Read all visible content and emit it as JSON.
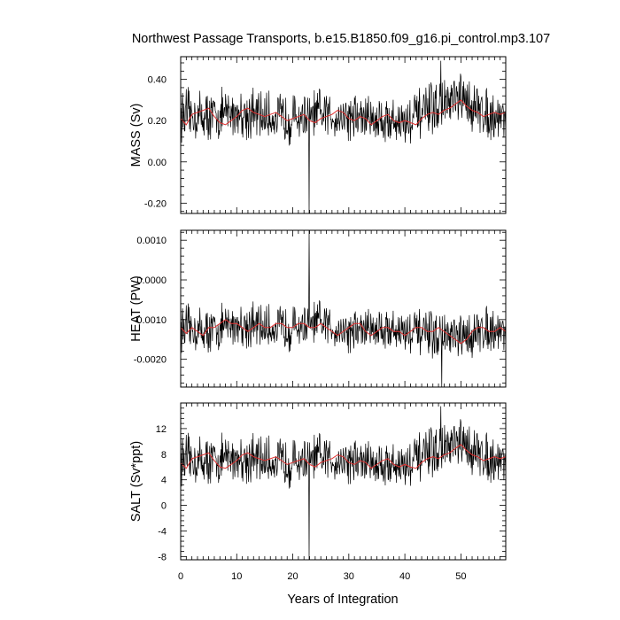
{
  "title": "Northwest Passage Transports, b.e15.B1850.f09_g16.pi_control.mp3.107",
  "xlabel": "Years of Integration",
  "x_ticks": [
    "0",
    "10",
    "20",
    "30",
    "40",
    "50"
  ],
  "chart_data": [
    {
      "type": "line",
      "ylabel": "MASS (Sv)",
      "x_range": [
        0,
        58
      ],
      "ylim": [
        -0.25,
        0.51
      ],
      "y_ticks": [
        {
          "value": -0.2,
          "label": "-0.20"
        },
        {
          "value": 0.0,
          "label": "0.00"
        },
        {
          "value": 0.2,
          "label": "0.20"
        },
        {
          "value": 0.4,
          "label": "0.40"
        }
      ],
      "raw_mean": 0.23,
      "raw_amplitude": 0.09,
      "spikes": [
        [
          22.9,
          -0.26
        ],
        [
          46.4,
          0.49
        ]
      ],
      "series": [
        {
          "color": "#000000",
          "x": [
            0,
            5,
            10,
            15,
            20,
            25,
            30,
            35,
            40,
            45,
            50,
            55,
            58
          ],
          "values": [
            0.23,
            0.22,
            0.24,
            0.22,
            0.21,
            0.23,
            0.22,
            0.21,
            0.19,
            0.26,
            0.3,
            0.23,
            0.22
          ]
        },
        {
          "color": "#e03030",
          "x": [
            0,
            1,
            2,
            3,
            4,
            5,
            6,
            7,
            8,
            9,
            10,
            11,
            12,
            13,
            14,
            15,
            16,
            17,
            18,
            19,
            20,
            21,
            22,
            23,
            24,
            25,
            26,
            27,
            28,
            29,
            30,
            31,
            32,
            33,
            34,
            35,
            36,
            37,
            38,
            39,
            40,
            41,
            42,
            43,
            44,
            45,
            46,
            47,
            48,
            49,
            50,
            51,
            52,
            53,
            54,
            55,
            56,
            57,
            58
          ],
          "values": [
            0.21,
            0.18,
            0.23,
            0.24,
            0.25,
            0.26,
            0.22,
            0.19,
            0.18,
            0.2,
            0.22,
            0.25,
            0.26,
            0.24,
            0.23,
            0.22,
            0.23,
            0.24,
            0.22,
            0.2,
            0.21,
            0.22,
            0.23,
            0.2,
            0.19,
            0.21,
            0.22,
            0.23,
            0.25,
            0.24,
            0.21,
            0.2,
            0.22,
            0.21,
            0.18,
            0.2,
            0.22,
            0.23,
            0.2,
            0.19,
            0.2,
            0.19,
            0.18,
            0.21,
            0.23,
            0.24,
            0.23,
            0.25,
            0.26,
            0.28,
            0.3,
            0.27,
            0.25,
            0.24,
            0.22,
            0.23,
            0.24,
            0.23,
            0.24
          ]
        }
      ]
    },
    {
      "type": "line",
      "ylabel": "HEAT (PW)",
      "x_range": [
        0,
        58
      ],
      "ylim": [
        -0.0027,
        0.00125
      ],
      "y_ticks": [
        {
          "value": -0.002,
          "label": "-0.0020"
        },
        {
          "value": -0.001,
          "label": "-0.0010"
        },
        {
          "value": 0.0,
          "label": "0.0000"
        },
        {
          "value": 0.001,
          "label": "0.0010"
        }
      ],
      "raw_mean": -0.0012,
      "raw_amplitude": 0.00042,
      "spikes": [
        [
          22.9,
          0.00125
        ],
        [
          46.6,
          -0.0027
        ]
      ],
      "series": [
        {
          "color": "#000000",
          "x": [
            0,
            5,
            10,
            15,
            20,
            25,
            30,
            35,
            40,
            45,
            50,
            55,
            58
          ],
          "values": [
            -0.0012,
            -0.0013,
            -0.0011,
            -0.0012,
            -0.0012,
            -0.0011,
            -0.0013,
            -0.0012,
            -0.0013,
            -0.0014,
            -0.0015,
            -0.0012,
            -0.0013
          ]
        },
        {
          "color": "#e03030",
          "x": [
            0,
            1,
            2,
            3,
            4,
            5,
            6,
            7,
            8,
            9,
            10,
            11,
            12,
            13,
            14,
            15,
            16,
            17,
            18,
            19,
            20,
            21,
            22,
            23,
            24,
            25,
            26,
            27,
            28,
            29,
            30,
            31,
            32,
            33,
            34,
            35,
            36,
            37,
            38,
            39,
            40,
            41,
            42,
            43,
            44,
            45,
            46,
            47,
            48,
            49,
            50,
            51,
            52,
            53,
            54,
            55,
            56,
            57,
            58
          ],
          "values": [
            -0.0012,
            -0.00135,
            -0.0012,
            -0.0013,
            -0.0014,
            -0.0012,
            -0.0012,
            -0.0011,
            -0.001,
            -0.0011,
            -0.0011,
            -0.0012,
            -0.0013,
            -0.0012,
            -0.0011,
            -0.0012,
            -0.0012,
            -0.0011,
            -0.0011,
            -0.0012,
            -0.0012,
            -0.0011,
            -0.0011,
            -0.0012,
            -0.0012,
            -0.0011,
            -0.0012,
            -0.0013,
            -0.0014,
            -0.0013,
            -0.0012,
            -0.0011,
            -0.0011,
            -0.0013,
            -0.0014,
            -0.0013,
            -0.0012,
            -0.0012,
            -0.0013,
            -0.0013,
            -0.0014,
            -0.0013,
            -0.0012,
            -0.0012,
            -0.0013,
            -0.0013,
            -0.0012,
            -0.0013,
            -0.0014,
            -0.0015,
            -0.0016,
            -0.0015,
            -0.0013,
            -0.0012,
            -0.0012,
            -0.0013,
            -0.0013,
            -0.0012,
            -0.0013
          ]
        }
      ]
    },
    {
      "type": "line",
      "ylabel": "SALT (Sv*ppt)",
      "x_range": [
        0,
        58
      ],
      "ylim": [
        -8.5,
        16
      ],
      "y_ticks": [
        {
          "value": -8,
          "label": "-8"
        },
        {
          "value": -4,
          "label": "-4"
        },
        {
          "value": 0,
          "label": "0"
        },
        {
          "value": 4,
          "label": "4"
        },
        {
          "value": 8,
          "label": "8"
        },
        {
          "value": 12,
          "label": "12"
        }
      ],
      "raw_mean": 7.3,
      "raw_amplitude": 2.8,
      "spikes": [
        [
          22.9,
          -8.5
        ],
        [
          46.4,
          15.5
        ]
      ],
      "series": [
        {
          "color": "#000000",
          "x": [
            0,
            5,
            10,
            15,
            20,
            25,
            30,
            35,
            40,
            45,
            50,
            55,
            58
          ],
          "values": [
            7.2,
            6.9,
            7.5,
            7.0,
            6.7,
            7.4,
            7.0,
            6.6,
            6.2,
            8.3,
            9.5,
            7.4,
            7.1
          ]
        },
        {
          "color": "#e03030",
          "x": [
            0,
            1,
            2,
            3,
            4,
            5,
            6,
            7,
            8,
            9,
            10,
            11,
            12,
            13,
            14,
            15,
            16,
            17,
            18,
            19,
            20,
            21,
            22,
            23,
            24,
            25,
            26,
            27,
            28,
            29,
            30,
            31,
            32,
            33,
            34,
            35,
            36,
            37,
            38,
            39,
            40,
            41,
            42,
            43,
            44,
            45,
            46,
            47,
            48,
            49,
            50,
            51,
            52,
            53,
            54,
            55,
            56,
            57,
            58
          ],
          "values": [
            6.6,
            5.8,
            7.3,
            7.6,
            7.9,
            8.2,
            7.0,
            6.0,
            5.8,
            6.4,
            7.0,
            7.9,
            8.2,
            7.6,
            7.3,
            7.0,
            7.3,
            7.6,
            7.0,
            6.4,
            6.7,
            7.0,
            7.3,
            6.4,
            6.0,
            6.7,
            7.0,
            7.3,
            7.9,
            7.6,
            6.7,
            6.4,
            7.0,
            6.7,
            5.8,
            6.4,
            7.0,
            7.3,
            6.4,
            6.0,
            6.4,
            6.0,
            5.8,
            6.7,
            7.3,
            7.6,
            7.3,
            7.9,
            8.2,
            8.9,
            9.5,
            8.6,
            7.9,
            7.6,
            7.0,
            7.3,
            7.6,
            7.3,
            7.6
          ]
        }
      ]
    }
  ]
}
